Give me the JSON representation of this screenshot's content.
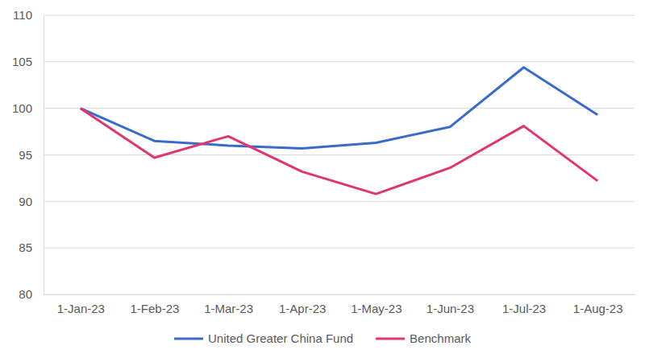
{
  "chart_data": {
    "type": "line",
    "categories": [
      "1-Jan-23",
      "1-Feb-23",
      "1-Mar-23",
      "1-Apr-23",
      "1-May-23",
      "1-Jun-23",
      "1-Jul-23",
      "1-Aug-23"
    ],
    "series": [
      {
        "name": "United Greater China Fund",
        "color": "#3a6bc8",
        "values": [
          100,
          96.5,
          96.0,
          95.7,
          96.3,
          98.0,
          104.4,
          99.3
        ]
      },
      {
        "name": "Benchmark",
        "color": "#e0356f",
        "values": [
          100,
          94.7,
          97.0,
          93.2,
          90.8,
          93.6,
          98.1,
          92.2
        ]
      }
    ],
    "ylim": [
      80,
      110
    ],
    "yticks": [
      80,
      85,
      90,
      95,
      100,
      105,
      110
    ],
    "grid": true,
    "legend": "bottom"
  }
}
